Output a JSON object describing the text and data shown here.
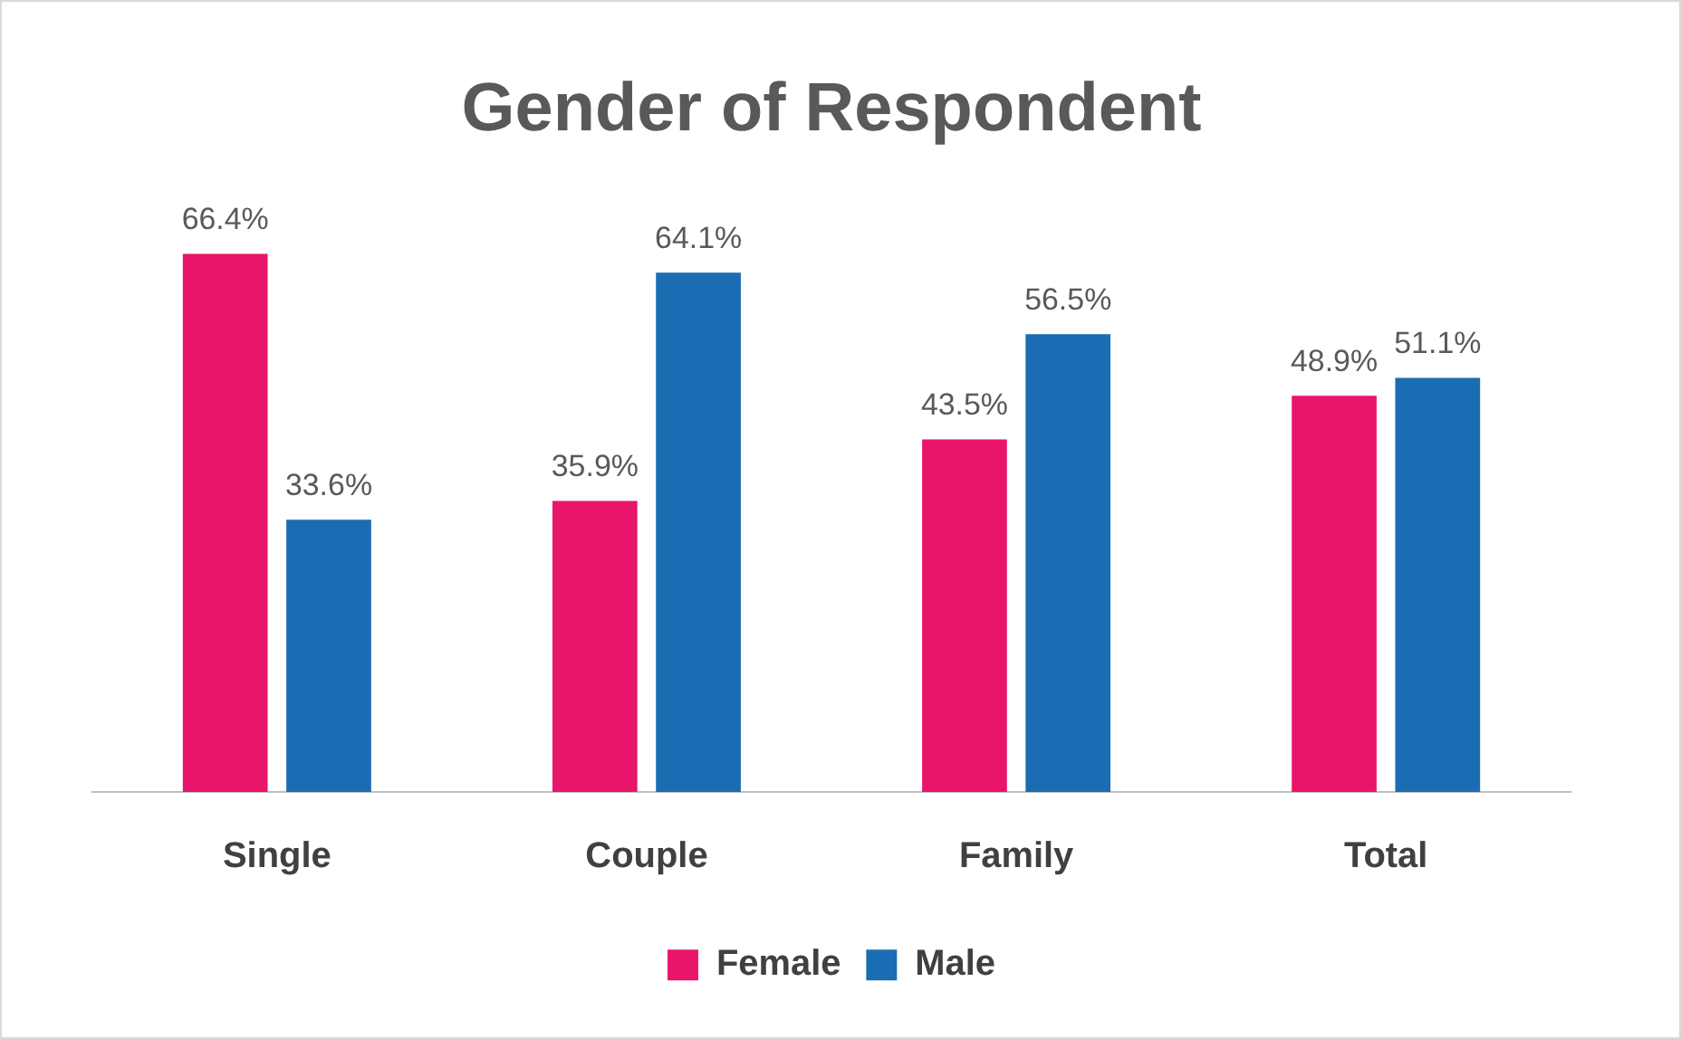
{
  "chart_data": {
    "type": "bar",
    "title": "Gender of Respondent",
    "categories": [
      "Single",
      "Couple",
      "Family",
      "Total"
    ],
    "series": [
      {
        "name": "Female",
        "color": "#e8156b",
        "values": [
          66.4,
          35.9,
          43.5,
          48.9
        ],
        "value_labels": [
          "66.4%",
          "35.9%",
          "43.5%",
          "48.9%"
        ]
      },
      {
        "name": "Male",
        "color": "#1a6db3",
        "values": [
          33.6,
          64.1,
          56.5,
          51.1
        ],
        "value_labels": [
          "33.6%",
          "64.1%",
          "56.5%",
          "51.1%"
        ]
      }
    ],
    "legend": "bottom",
    "grid": false
  }
}
